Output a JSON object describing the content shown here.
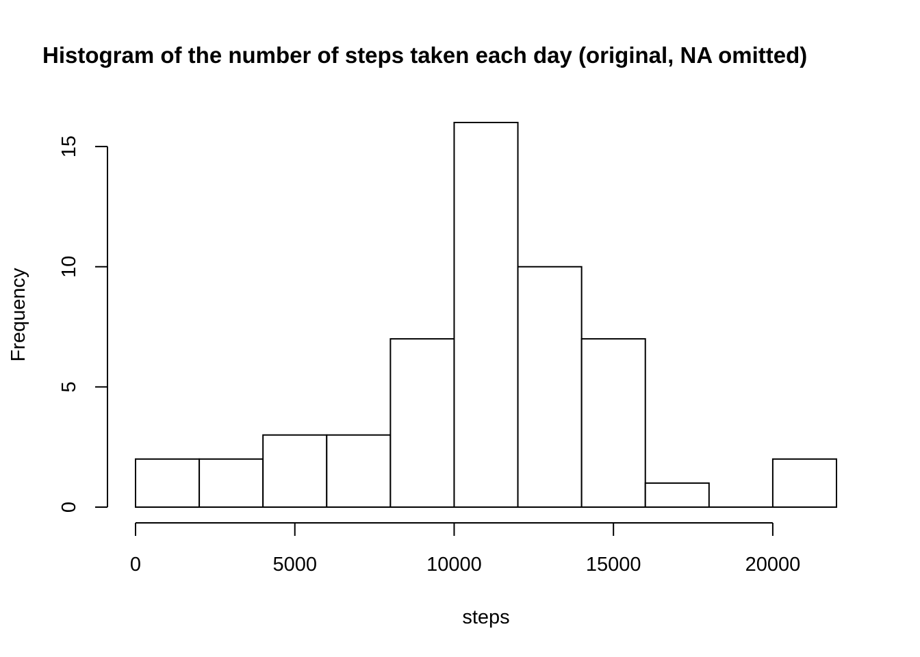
{
  "chart_data": {
    "type": "bar",
    "title": "Histogram of the number of steps taken each day (original, NA omitted)",
    "xlabel": "steps",
    "ylabel": "Frequency",
    "bins": [
      {
        "from": 0,
        "to": 2000,
        "count": 2
      },
      {
        "from": 2000,
        "to": 4000,
        "count": 2
      },
      {
        "from": 4000,
        "to": 6000,
        "count": 3
      },
      {
        "from": 6000,
        "to": 8000,
        "count": 3
      },
      {
        "from": 8000,
        "to": 10000,
        "count": 7
      },
      {
        "from": 10000,
        "to": 12000,
        "count": 16
      },
      {
        "from": 12000,
        "to": 14000,
        "count": 10
      },
      {
        "from": 14000,
        "to": 16000,
        "count": 7
      },
      {
        "from": 16000,
        "to": 18000,
        "count": 1
      },
      {
        "from": 18000,
        "to": 20000,
        "count": 0
      },
      {
        "from": 20000,
        "to": 22000,
        "count": 2
      }
    ],
    "xlim": [
      0,
      22000
    ],
    "ylim": [
      0,
      16
    ],
    "x_ticks": [
      0,
      5000,
      10000,
      15000,
      20000
    ],
    "y_ticks": [
      0,
      5,
      10,
      15
    ],
    "grid": false,
    "legend": "none",
    "bar_fill": "#ffffff",
    "bar_stroke": "#000000"
  }
}
